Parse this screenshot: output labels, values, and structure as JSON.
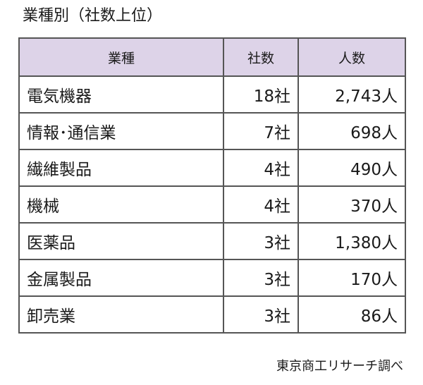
{
  "title": "業種別（社数上位）",
  "table": {
    "headers": [
      "業種",
      "社数",
      "人数"
    ],
    "rows": [
      {
        "industry": "電気機器",
        "companies": "18社",
        "people": "2,743人"
      },
      {
        "industry": "情報･通信業",
        "companies": "7社",
        "people": "698人"
      },
      {
        "industry": "繊維製品",
        "companies": "4社",
        "people": "490人"
      },
      {
        "industry": "機械",
        "companies": "4社",
        "people": "370人"
      },
      {
        "industry": "医薬品",
        "companies": "3社",
        "people": "1,380人"
      },
      {
        "industry": "金属製品",
        "companies": "3社",
        "people": "170人"
      },
      {
        "industry": "卸売業",
        "companies": "3社",
        "people": "86人"
      }
    ]
  },
  "source": "東京商工リサーチ調べ",
  "colors": {
    "header_bg": "#ddd3e8",
    "border": "#555555"
  }
}
